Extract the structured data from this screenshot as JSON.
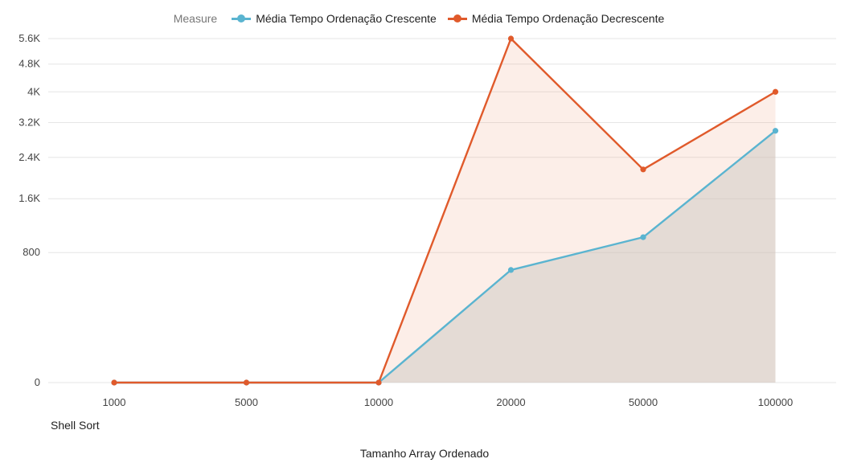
{
  "chart_data": {
    "type": "area",
    "legend_title": "Measure",
    "legend_position": "top-center",
    "categories": [
      "1000",
      "5000",
      "10000",
      "20000",
      "50000",
      "100000"
    ],
    "series": [
      {
        "name": "Média Tempo Ordenação Crescente",
        "values": [
          0,
          0,
          0,
          600,
          1000,
          3000
        ],
        "color": "#5ab4d0"
      },
      {
        "name": "Média Tempo Ordenação Decrescente",
        "values": [
          0,
          0,
          0,
          5600,
          2150,
          4000
        ],
        "color": "#e05a2b"
      }
    ],
    "y_scale": "sqrt",
    "ylim": [
      0,
      5600
    ],
    "y_ticks": [
      {
        "value": 0,
        "label": "0"
      },
      {
        "value": 800,
        "label": "800"
      },
      {
        "value": 1600,
        "label": "1.6K"
      },
      {
        "value": 2400,
        "label": "2.4K"
      },
      {
        "value": 3200,
        "label": "3.2K"
      },
      {
        "value": 4000,
        "label": "4K"
      },
      {
        "value": 4800,
        "label": "4.8K"
      },
      {
        "value": 5600,
        "label": "5.6K"
      }
    ],
    "subtitle": "Shell Sort",
    "xlabel": "Tamanho Array Ordenado",
    "ylabel": "",
    "grid": true
  }
}
